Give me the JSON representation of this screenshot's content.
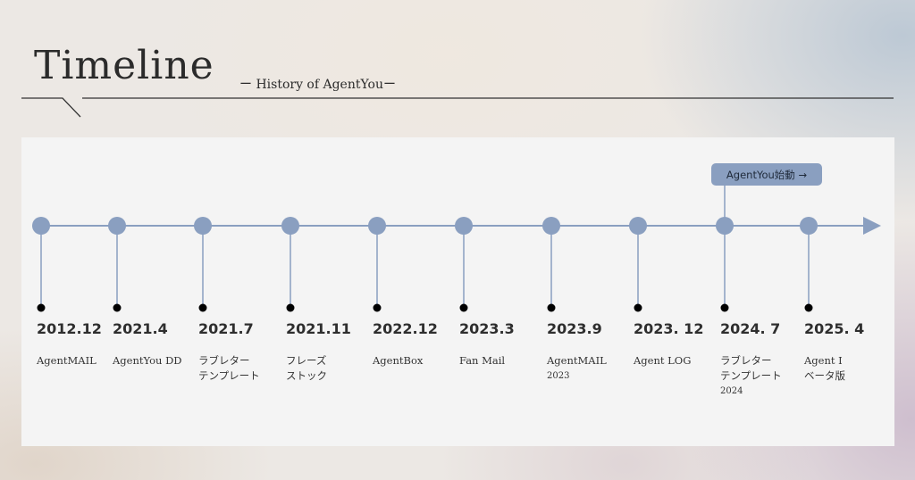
{
  "header": {
    "title": "Timeline",
    "subtitle": "ー History of AgentYouー"
  },
  "colors": {
    "accent": "#8a9fc0",
    "dot": "#000000",
    "panel": "#f4f4f4",
    "text": "#2e2e2e"
  },
  "milestone": {
    "label": "AgentYou始動 →",
    "event_index": 8
  },
  "events": [
    {
      "date": "2012.12",
      "line1": "AgentMAIL",
      "line2": "",
      "sub": ""
    },
    {
      "date": "2021.4",
      "line1": "AgentYou DD",
      "line2": "",
      "sub": ""
    },
    {
      "date": "2021.7",
      "line1": "ラブレター",
      "line2": "テンプレート",
      "sub": ""
    },
    {
      "date": "2021.11",
      "line1": "フレーズ",
      "line2": "ストック",
      "sub": ""
    },
    {
      "date": "2022.12",
      "line1": "AgentBox",
      "line2": "",
      "sub": ""
    },
    {
      "date": "2023.3",
      "line1": "Fan Mail",
      "line2": "",
      "sub": ""
    },
    {
      "date": "2023.9",
      "line1": "AgentMAIL",
      "line2": "",
      "sub": "2023"
    },
    {
      "date": "2023. 12",
      "line1": "Agent LOG",
      "line2": "",
      "sub": ""
    },
    {
      "date": "2024. 7",
      "line1": "ラブレター",
      "line2": "テンプレート",
      "sub": "2024"
    },
    {
      "date": "2025. 4",
      "line1": "Agent I",
      "line2": "ベータ版",
      "sub": ""
    }
  ]
}
